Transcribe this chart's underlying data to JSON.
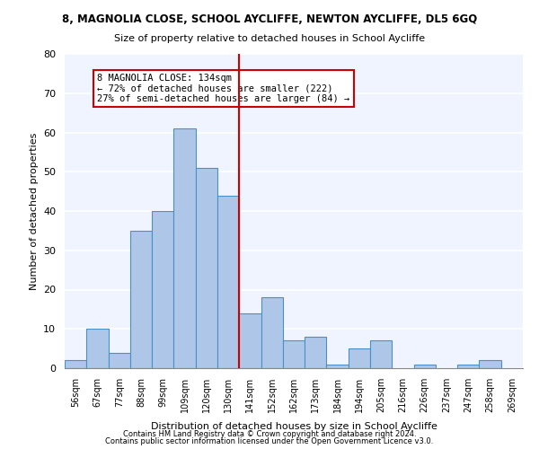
{
  "title1": "8, MAGNOLIA CLOSE, SCHOOL AYCLIFFE, NEWTON AYCLIFFE, DL5 6GQ",
  "title2": "Size of property relative to detached houses in School Aycliffe",
  "xlabel": "Distribution of detached houses by size in School Aycliffe",
  "ylabel": "Number of detached properties",
  "categories": [
    "56sqm",
    "67sqm",
    "77sqm",
    "88sqm",
    "99sqm",
    "109sqm",
    "120sqm",
    "130sqm",
    "141sqm",
    "152sqm",
    "162sqm",
    "173sqm",
    "184sqm",
    "194sqm",
    "205sqm",
    "216sqm",
    "226sqm",
    "237sqm",
    "247sqm",
    "258sqm",
    "269sqm"
  ],
  "values": [
    2,
    10,
    4,
    35,
    40,
    61,
    51,
    44,
    14,
    18,
    7,
    8,
    1,
    5,
    7,
    0,
    1,
    0,
    1,
    2,
    0
  ],
  "bar_color": "#aec6e8",
  "bar_edge_color": "#4a90c4",
  "vline_x": 7.5,
  "vline_color": "#cc0000",
  "annotation_text": "8 MAGNOLIA CLOSE: 134sqm\n← 72% of detached houses are smaller (222)\n27% of semi-detached houses are larger (84) →",
  "annotation_box_color": "#ffffff",
  "annotation_box_edge": "#cc0000",
  "ylim": [
    0,
    80
  ],
  "yticks": [
    0,
    10,
    20,
    30,
    40,
    50,
    60,
    70,
    80
  ],
  "bg_color": "#f0f4ff",
  "grid_color": "#ffffff",
  "footer1": "Contains HM Land Registry data © Crown copyright and database right 2024.",
  "footer2": "Contains public sector information licensed under the Open Government Licence v3.0."
}
